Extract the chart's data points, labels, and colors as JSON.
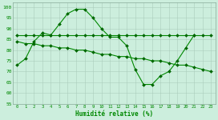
{
  "xlabel": "Humidité relative (%)",
  "bg_color": "#cceedd",
  "grid_color": "#aaccbb",
  "line_color": "#008800",
  "marker_color": "#006600",
  "xlim": [
    -0.5,
    23.5
  ],
  "ylim": [
    55,
    102
  ],
  "yticks": [
    55,
    60,
    65,
    70,
    75,
    80,
    85,
    90,
    95,
    100
  ],
  "xticks": [
    0,
    1,
    2,
    3,
    4,
    5,
    6,
    7,
    8,
    9,
    10,
    11,
    12,
    13,
    14,
    15,
    16,
    17,
    18,
    19,
    20,
    21,
    22,
    23
  ],
  "series1_x": [
    0,
    1,
    2,
    3,
    4,
    5,
    6,
    7,
    8,
    9,
    10,
    11,
    12,
    13,
    14,
    15,
    16,
    17,
    18,
    19,
    20,
    21
  ],
  "series1_y": [
    73,
    76,
    84,
    88,
    87,
    92,
    97,
    99,
    99,
    95,
    90,
    86,
    86,
    82,
    71,
    64,
    64,
    68,
    70,
    75,
    81,
    87
  ],
  "series2_x": [
    0,
    1,
    2,
    3,
    4,
    5,
    6,
    7,
    8,
    9,
    10,
    11,
    12,
    13,
    14,
    15,
    16,
    17,
    18,
    19,
    20,
    21,
    22,
    23
  ],
  "series2_y": [
    84,
    83,
    83,
    82,
    82,
    81,
    81,
    80,
    80,
    79,
    78,
    78,
    77,
    77,
    76,
    76,
    75,
    75,
    74,
    73,
    73,
    72,
    71,
    70
  ],
  "series3_x": [
    0,
    1,
    2,
    3,
    4,
    5,
    6,
    7,
    8,
    9,
    10,
    11,
    12,
    13,
    14,
    15,
    16,
    17,
    18,
    19,
    20,
    21,
    22,
    23
  ],
  "series3_y": [
    87,
    87,
    87,
    87,
    87,
    87,
    87,
    87,
    87,
    87,
    87,
    87,
    87,
    87,
    87,
    87,
    87,
    87,
    87,
    87,
    87,
    87,
    87,
    87
  ]
}
